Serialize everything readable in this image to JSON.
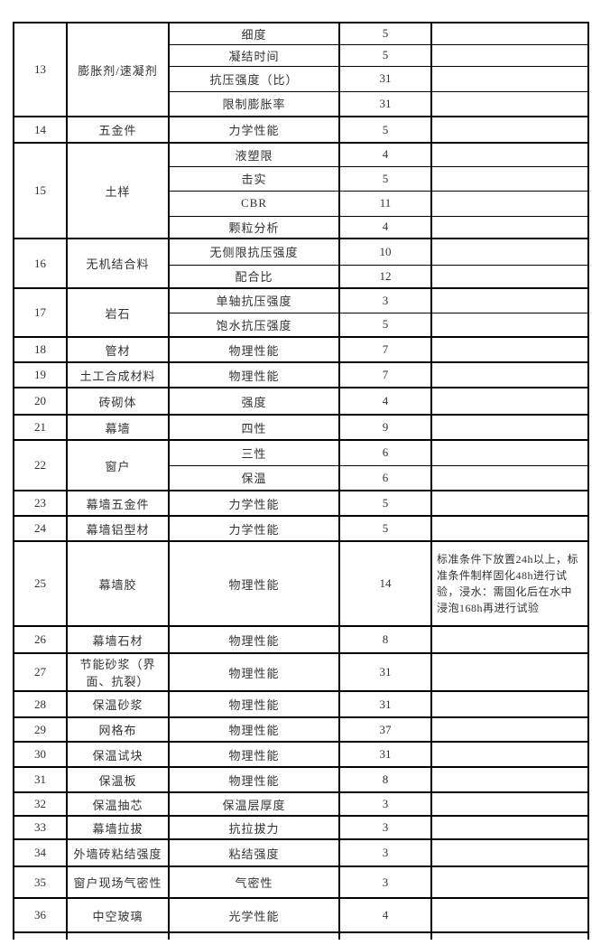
{
  "table": {
    "groups": [
      {
        "no": "13",
        "material": "膨胀剂/速凝剂",
        "items": [
          {
            "item": "细度",
            "value": "5",
            "remark": ""
          },
          {
            "item": "凝结时间",
            "value": "5",
            "remark": ""
          },
          {
            "item": "抗压强度（比）",
            "value": "31",
            "remark": ""
          },
          {
            "item": "限制膨胀率",
            "value": "31",
            "remark": ""
          }
        ]
      },
      {
        "no": "14",
        "material": "五金件",
        "items": [
          {
            "item": "力学性能",
            "value": "5",
            "remark": ""
          }
        ]
      },
      {
        "no": "15",
        "material": "土样",
        "items": [
          {
            "item": "液塑限",
            "value": "4",
            "remark": ""
          },
          {
            "item": "击实",
            "value": "5",
            "remark": ""
          },
          {
            "item": "CBR",
            "value": "11",
            "remark": ""
          },
          {
            "item": "颗粒分析",
            "value": "4",
            "remark": ""
          }
        ]
      },
      {
        "no": "16",
        "material": "无机结合料",
        "items": [
          {
            "item": "无侧限抗压强度",
            "value": "10",
            "remark": ""
          },
          {
            "item": "配合比",
            "value": "12",
            "remark": ""
          }
        ]
      },
      {
        "no": "17",
        "material": "岩石",
        "items": [
          {
            "item": "单轴抗压强度",
            "value": "3",
            "remark": ""
          },
          {
            "item": "饱水抗压强度",
            "value": "5",
            "remark": ""
          }
        ]
      },
      {
        "no": "18",
        "material": "管材",
        "items": [
          {
            "item": "物理性能",
            "value": "7",
            "remark": ""
          }
        ]
      },
      {
        "no": "19",
        "material": "土工合成材料",
        "items": [
          {
            "item": "物理性能",
            "value": "7",
            "remark": ""
          }
        ]
      },
      {
        "no": "20",
        "material": "砖砌体",
        "items": [
          {
            "item": "强度",
            "value": "4",
            "remark": ""
          }
        ]
      },
      {
        "no": "21",
        "material": "幕墙",
        "items": [
          {
            "item": "四性",
            "value": "9",
            "remark": ""
          }
        ]
      },
      {
        "no": "22",
        "material": "窗户",
        "items": [
          {
            "item": "三性",
            "value": "6",
            "remark": ""
          },
          {
            "item": "保温",
            "value": "6",
            "remark": ""
          }
        ]
      },
      {
        "no": "23",
        "material": "幕墙五金件",
        "items": [
          {
            "item": "力学性能",
            "value": "5",
            "remark": ""
          }
        ]
      },
      {
        "no": "24",
        "material": "幕墙铝型材",
        "items": [
          {
            "item": "力学性能",
            "value": "5",
            "remark": ""
          }
        ]
      },
      {
        "no": "25",
        "material": "幕墙胶",
        "items": [
          {
            "item": "物理性能",
            "value": "14",
            "remark": "标准条件下放置24h以上，标准条件制样固化48h进行试验，浸水：需固化后在水中浸泡168h再进行试验"
          }
        ]
      },
      {
        "no": "26",
        "material": "幕墙石材",
        "items": [
          {
            "item": "物理性能",
            "value": "8",
            "remark": ""
          }
        ]
      },
      {
        "no": "27",
        "material": "节能砂浆（界面、抗裂）",
        "items": [
          {
            "item": "物理性能",
            "value": "31",
            "remark": ""
          }
        ]
      },
      {
        "no": "28",
        "material": "保温砂浆",
        "items": [
          {
            "item": "物理性能",
            "value": "31",
            "remark": ""
          }
        ]
      },
      {
        "no": "29",
        "material": "网格布",
        "items": [
          {
            "item": "物理性能",
            "value": "37",
            "remark": ""
          }
        ]
      },
      {
        "no": "30",
        "material": "保温试块",
        "items": [
          {
            "item": "物理性能",
            "value": "31",
            "remark": ""
          }
        ]
      },
      {
        "no": "31",
        "material": "保温板",
        "items": [
          {
            "item": "物理性能",
            "value": "8",
            "remark": ""
          }
        ]
      },
      {
        "no": "32",
        "material": "保温抽芯",
        "items": [
          {
            "item": "保温层厚度",
            "value": "3",
            "remark": ""
          }
        ]
      },
      {
        "no": "33",
        "material": "幕墙拉拔",
        "items": [
          {
            "item": "抗拉拔力",
            "value": "3",
            "remark": ""
          }
        ]
      },
      {
        "no": "34",
        "material": "外墙砖粘结强度",
        "items": [
          {
            "item": "粘结强度",
            "value": "3",
            "remark": ""
          }
        ]
      },
      {
        "no": "35",
        "material": "窗户现场气密性",
        "items": [
          {
            "item": "气密性",
            "value": "3",
            "remark": ""
          }
        ]
      },
      {
        "no": "36",
        "material": "中空玻璃",
        "items": [
          {
            "item": "光学性能",
            "value": "4",
            "remark": ""
          }
        ]
      }
    ]
  }
}
